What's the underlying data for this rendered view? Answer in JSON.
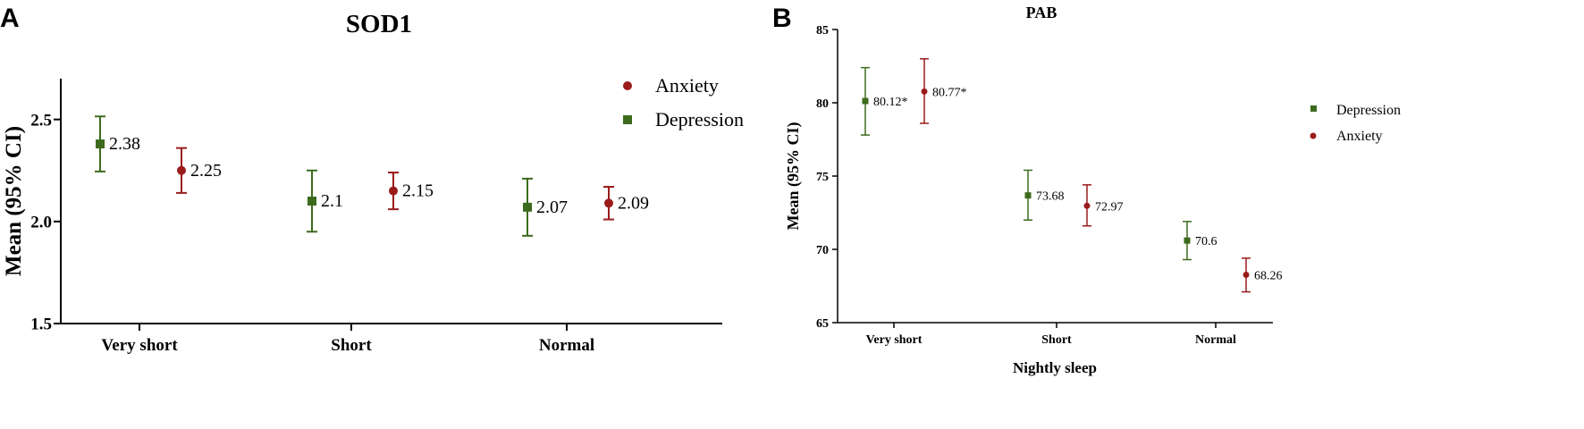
{
  "chart_data": [
    {
      "panel": "A",
      "type": "scatter",
      "title": "SOD1",
      "xlabel": "",
      "ylabel": "Mean (95% CI)",
      "ylim": [
        1.5,
        2.7
      ],
      "yticks": [
        "1.5",
        "2.0",
        "2.5"
      ],
      "ytick_values": [
        1.5,
        2.0,
        2.5
      ],
      "categories": [
        "Very short",
        "Short",
        "Normal"
      ],
      "legend": {
        "placement": "top-right",
        "order": [
          "Anxiety",
          "Depression"
        ]
      },
      "series": [
        {
          "name": "Depression",
          "color": "#3d6b1e",
          "marker": "square",
          "values": [
            2.38,
            2.1,
            2.07
          ],
          "lower": [
            2.245,
            1.95,
            1.93
          ],
          "upper": [
            2.515,
            2.25,
            2.21
          ],
          "labels": [
            "2.38",
            "2.1",
            "2.07"
          ]
        },
        {
          "name": "Anxiety",
          "color": "#9b1b1b",
          "marker": "circle",
          "values": [
            2.25,
            2.15,
            2.09
          ],
          "lower": [
            2.14,
            2.06,
            2.01
          ],
          "upper": [
            2.36,
            2.24,
            2.17
          ],
          "labels": [
            "2.25",
            "2.15",
            "2.09"
          ]
        }
      ]
    },
    {
      "panel": "B",
      "type": "scatter",
      "title": "PAB",
      "xlabel": "Nightly sleep",
      "ylabel": "Mean (95% CI)",
      "ylim": [
        65,
        85
      ],
      "yticks": [
        "65",
        "70",
        "75",
        "80",
        "85"
      ],
      "ytick_values": [
        65,
        70,
        75,
        80,
        85
      ],
      "categories": [
        "Very short",
        "Short",
        "Normal"
      ],
      "legend": {
        "placement": "right",
        "order": [
          "Depression",
          "Anxiety"
        ]
      },
      "series": [
        {
          "name": "Depression",
          "color": "#3d6b1e",
          "marker": "square",
          "values": [
            80.12,
            73.68,
            70.6
          ],
          "lower": [
            77.8,
            72.0,
            69.3
          ],
          "upper": [
            82.4,
            75.4,
            71.9
          ],
          "labels": [
            "80.12*",
            "73.68",
            "70.6"
          ]
        },
        {
          "name": "Anxiety",
          "color": "#9b1b1b",
          "marker": "circle",
          "values": [
            80.77,
            72.97,
            68.26
          ],
          "lower": [
            78.6,
            71.6,
            67.1
          ],
          "upper": [
            83.0,
            74.4,
            69.4
          ],
          "labels": [
            "80.77*",
            "72.97",
            "68.26"
          ]
        }
      ]
    }
  ]
}
